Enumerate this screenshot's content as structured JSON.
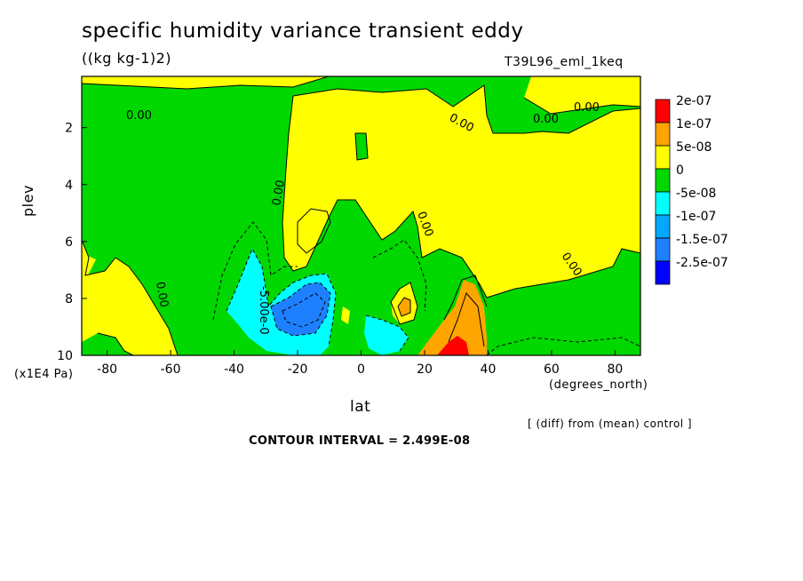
{
  "header": {
    "title": "specific humidity variance transient eddy",
    "units": "((kg kg-1)2)",
    "run_name": "T39L96_eml_1keq"
  },
  "axes": {
    "ylabel": "plev",
    "y_multiplier": "(x1E4 Pa)",
    "xlabel": "lat",
    "x_units": "(degrees_north)"
  },
  "footer": {
    "diff_note": "[ (diff) from (mean) control ]",
    "contour_interval": "CONTOUR INTERVAL = 2.499E-08"
  },
  "chart_data": {
    "type": "contour",
    "xlim": [
      -88,
      88
    ],
    "ylim": [
      10,
      0.2
    ],
    "x_ticks": [
      -80,
      -60,
      -40,
      -20,
      0,
      20,
      40,
      60,
      80
    ],
    "y_ticks": [
      2,
      4,
      6,
      8,
      10
    ],
    "contour_labels": [
      "0.00",
      "0.00",
      "0.00",
      "0.00",
      "0.00",
      "0.00",
      "0.00",
      "0.00",
      "-5.00e-0"
    ],
    "legend": [
      {
        "label": "2e-07",
        "color": "#ff0000"
      },
      {
        "label": "1e-07",
        "color": "#ffa500"
      },
      {
        "label": "5e-08",
        "color": "#ffff00"
      },
      {
        "label": "0",
        "color": "#00d800"
      },
      {
        "label": "-5e-08",
        "color": "#00ffff"
      },
      {
        "label": "-1e-07",
        "color": "#00a8ff"
      },
      {
        "label": "-1.5e-07",
        "color": "#1e80ff"
      },
      {
        "label": "-2.5e-07",
        "color": "#0000ff"
      }
    ],
    "colors": {
      "background": "#00d800",
      "positive_low": "#ffff00",
      "positive_mid": "#ffa500",
      "positive_high": "#ff0000",
      "negative_low": "#00ffff",
      "negative_mid": "#00a8ff",
      "negative_high": "#1e80ff"
    }
  }
}
